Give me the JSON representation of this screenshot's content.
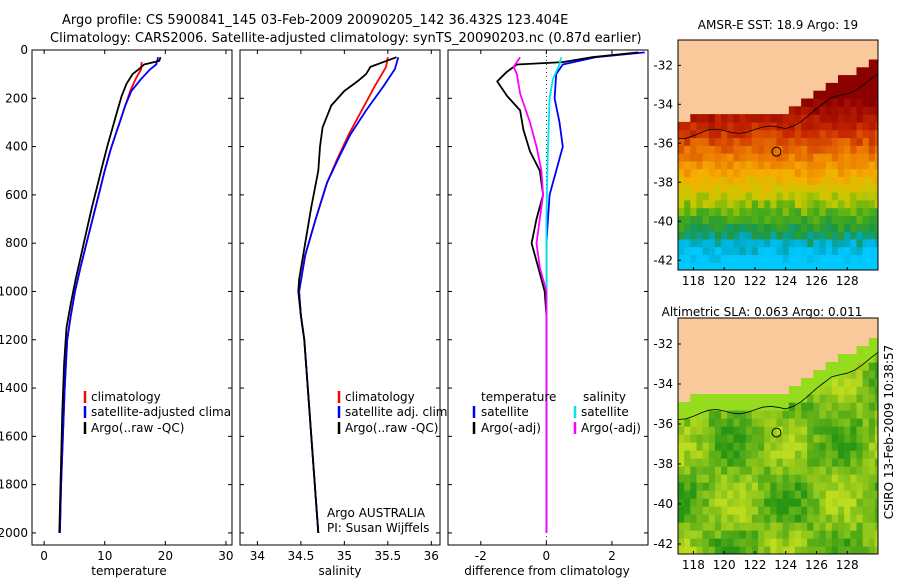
{
  "header": {
    "line1": "Argo profile: CS 5900841_145 03-Feb-2009 20090205_142 36.432S 123.404E",
    "line2": "Climatology: CARS2006. Satellite-adjusted climatology: synTS_20090203.nc (0.87d earlier)"
  },
  "side_label": "CSIRO 13-Feb-2009 10:38:57",
  "colors": {
    "climatology": "#ff0000",
    "satellite": "#0000ff",
    "argo": "#000000",
    "sal_satellite": "#00e5ee",
    "sal_argo": "#ff00ff",
    "land": "#f9c89b"
  },
  "chart_data": [
    {
      "type": "line",
      "name": "temperature-profile",
      "xlabel": "temperature",
      "ylabel": "depth",
      "xlim": [
        -2,
        31
      ],
      "ylim": [
        2050,
        0
      ],
      "xticks": [
        0,
        10,
        20,
        30
      ],
      "yticks": [
        0,
        200,
        400,
        600,
        800,
        1000,
        1200,
        1400,
        1600,
        1800,
        2000
      ],
      "series": [
        {
          "name": "climatology",
          "color": "#ff0000",
          "points": [
            [
              16.1,
              50
            ],
            [
              16.0,
              80
            ],
            [
              15.1,
              120
            ],
            [
              14.2,
              170
            ],
            [
              13.4,
              230
            ],
            [
              12.6,
              290
            ],
            [
              11.8,
              350
            ],
            [
              11.0,
              410
            ],
            [
              10.0,
              500
            ],
            [
              9.0,
              600
            ],
            [
              8.0,
              700
            ],
            [
              7.0,
              800
            ],
            [
              6.0,
              900
            ],
            [
              5.1,
              1000
            ],
            [
              4.4,
              1100
            ],
            [
              3.8,
              1200
            ],
            [
              3.4,
              1400
            ],
            [
              3.1,
              1600
            ],
            [
              2.8,
              1800
            ],
            [
              2.6,
              2000
            ]
          ]
        },
        {
          "name": "satellite-adjusted climatology",
          "color": "#0000ff",
          "points": [
            [
              18.8,
              30
            ],
            [
              18.5,
              60
            ],
            [
              17.5,
              80
            ],
            [
              16.0,
              120
            ],
            [
              14.4,
              170
            ],
            [
              13.4,
              230
            ],
            [
              12.6,
              290
            ],
            [
              11.8,
              350
            ],
            [
              11.0,
              410
            ],
            [
              10.0,
              500
            ],
            [
              9.0,
              600
            ],
            [
              8.0,
              700
            ],
            [
              7.0,
              800
            ],
            [
              6.0,
              900
            ],
            [
              5.1,
              1000
            ],
            [
              4.4,
              1100
            ],
            [
              3.8,
              1200
            ],
            [
              3.4,
              1400
            ],
            [
              3.1,
              1600
            ],
            [
              2.8,
              1800
            ],
            [
              2.6,
              2000
            ]
          ]
        },
        {
          "name": "Argo(..raw -QC)",
          "color": "#000000",
          "points": [
            [
              19.2,
              30
            ],
            [
              19.0,
              45
            ],
            [
              16.5,
              60
            ],
            [
              15.6,
              80
            ],
            [
              14.6,
              100
            ],
            [
              13.6,
              140
            ],
            [
              12.8,
              190
            ],
            [
              12.0,
              260
            ],
            [
              11.2,
              330
            ],
            [
              10.4,
              400
            ],
            [
              9.6,
              480
            ],
            [
              8.8,
              560
            ],
            [
              7.9,
              650
            ],
            [
              7.0,
              750
            ],
            [
              6.1,
              850
            ],
            [
              5.2,
              950
            ],
            [
              4.4,
              1050
            ],
            [
              3.7,
              1150
            ],
            [
              3.3,
              1300
            ],
            [
              3.0,
              1500
            ],
            [
              2.8,
              1700
            ],
            [
              2.6,
              1900
            ],
            [
              2.5,
              2000
            ]
          ]
        }
      ],
      "legend": {
        "position": "bottom-right",
        "entries": [
          "climatology",
          "satellite-adjusted climatology",
          "Argo(..raw -QC)"
        ]
      }
    },
    {
      "type": "line",
      "name": "salinity-profile",
      "xlabel": "salinity",
      "ylabel": "depth",
      "xlim": [
        33.8,
        36.1
      ],
      "ylim": [
        2050,
        0
      ],
      "xticks": [
        34,
        34.5,
        35,
        35.5,
        36
      ],
      "series": [
        {
          "name": "climatology",
          "color": "#ff0000",
          "points": [
            [
              35.5,
              30
            ],
            [
              35.48,
              70
            ],
            [
              35.35,
              150
            ],
            [
              35.2,
              250
            ],
            [
              35.05,
              350
            ],
            [
              34.92,
              450
            ],
            [
              34.8,
              550
            ],
            [
              34.67,
              700
            ],
            [
              34.55,
              850
            ],
            [
              34.48,
              1000
            ],
            [
              34.5,
              1100
            ],
            [
              34.54,
              1200
            ],
            [
              34.58,
              1400
            ],
            [
              34.62,
              1600
            ],
            [
              34.66,
              1800
            ],
            [
              34.7,
              2000
            ]
          ]
        },
        {
          "name": "satellite adj. clim.",
          "color": "#0000ff",
          "points": [
            [
              35.62,
              30
            ],
            [
              35.58,
              80
            ],
            [
              35.45,
              150
            ],
            [
              35.25,
              250
            ],
            [
              35.07,
              350
            ],
            [
              34.93,
              450
            ],
            [
              34.8,
              550
            ],
            [
              34.67,
              700
            ],
            [
              34.55,
              850
            ],
            [
              34.48,
              1000
            ],
            [
              34.5,
              1100
            ],
            [
              34.54,
              1200
            ],
            [
              34.58,
              1400
            ],
            [
              34.62,
              1600
            ],
            [
              34.66,
              1800
            ],
            [
              34.7,
              2000
            ]
          ]
        },
        {
          "name": "Argo(..raw -QC)",
          "color": "#000000",
          "points": [
            [
              35.6,
              30
            ],
            [
              35.3,
              70
            ],
            [
              35.25,
              100
            ],
            [
              35.15,
              130
            ],
            [
              35.0,
              170
            ],
            [
              34.85,
              230
            ],
            [
              34.75,
              320
            ],
            [
              34.72,
              400
            ],
            [
              34.7,
              500
            ],
            [
              34.62,
              650
            ],
            [
              34.55,
              800
            ],
            [
              34.48,
              950
            ],
            [
              34.47,
              1000
            ],
            [
              34.5,
              1100
            ],
            [
              34.54,
              1200
            ],
            [
              34.58,
              1400
            ],
            [
              34.62,
              1600
            ],
            [
              34.66,
              1800
            ],
            [
              34.7,
              2000
            ]
          ]
        }
      ],
      "legend": {
        "position": "bottom-right",
        "entries": [
          "climatology",
          "satellite adj. clim.",
          "Argo(..raw -QC)"
        ]
      },
      "annotation": [
        "Argo AUSTRALIA",
        "PI: Susan Wijffels"
      ]
    },
    {
      "type": "line",
      "name": "difference-profile",
      "xlabel": "difference from climatology",
      "ylabel": "depth",
      "xlim": [
        -3,
        3.1
      ],
      "ylim": [
        2050,
        0
      ],
      "xticks": [
        -2,
        0,
        2
      ],
      "series": [
        {
          "name": "temperature satellite",
          "color": "#0000ff",
          "points": [
            [
              3.0,
              10
            ],
            [
              1.5,
              30
            ],
            [
              0.5,
              60
            ],
            [
              0.3,
              100
            ],
            [
              0.25,
              200
            ],
            [
              0.4,
              300
            ],
            [
              0.5,
              400
            ],
            [
              0.3,
              500
            ],
            [
              0.1,
              600
            ],
            [
              0.0,
              800
            ],
            [
              0.0,
              2000
            ]
          ]
        },
        {
          "name": "temperature Argo(-adj)",
          "color": "#000000",
          "points": [
            [
              2.8,
              10
            ],
            [
              1.4,
              30
            ],
            [
              0.5,
              50
            ],
            [
              -0.9,
              60
            ],
            [
              -1.2,
              90
            ],
            [
              -1.5,
              130
            ],
            [
              -1.2,
              190
            ],
            [
              -0.8,
              250
            ],
            [
              -0.7,
              330
            ],
            [
              -0.5,
              420
            ],
            [
              -0.2,
              500
            ],
            [
              -0.1,
              600
            ],
            [
              -0.3,
              700
            ],
            [
              -0.45,
              800
            ],
            [
              -0.25,
              900
            ],
            [
              -0.05,
              1000
            ],
            [
              0.0,
              1100
            ],
            [
              0.0,
              2000
            ]
          ]
        },
        {
          "name": "salinity satellite",
          "color": "#00e5ee",
          "points": [
            [
              0.45,
              30
            ],
            [
              0.4,
              60
            ],
            [
              0.2,
              120
            ],
            [
              0.1,
              200
            ],
            [
              0.05,
              400
            ],
            [
              0.0,
              700
            ],
            [
              0.0,
              2000
            ]
          ]
        },
        {
          "name": "salinity Argo(-adj)",
          "color": "#ff00ff",
          "points": [
            [
              -0.8,
              30
            ],
            [
              -1.0,
              70
            ],
            [
              -0.9,
              100
            ],
            [
              -0.8,
              180
            ],
            [
              -0.5,
              300
            ],
            [
              -0.3,
              400
            ],
            [
              -0.15,
              500
            ],
            [
              -0.1,
              600
            ],
            [
              -0.2,
              700
            ],
            [
              -0.3,
              800
            ],
            [
              -0.2,
              900
            ],
            [
              0.0,
              1000
            ],
            [
              0.0,
              2000
            ]
          ]
        }
      ],
      "legend": {
        "position": "bottom",
        "headers": [
          "temperature",
          "salinity"
        ],
        "entries": [
          "satellite",
          "Argo(-adj)",
          "satellite",
          "Argo(-adj)"
        ]
      }
    },
    {
      "type": "heatmap",
      "name": "sst-map",
      "title": "AMSR-E SST: 18.9 Argo: 19",
      "xlim": [
        117,
        130
      ],
      "ylim": [
        -42.5,
        -30.7
      ],
      "xticks": [
        118,
        120,
        122,
        124,
        126,
        128
      ],
      "yticks": [
        -32,
        -34,
        -36,
        -38,
        -40,
        -42
      ],
      "argo_location": [
        123.4,
        -36.43
      ]
    },
    {
      "type": "heatmap",
      "name": "sla-map",
      "title": "Altimetric SLA: 0.063 Argo: 0.011",
      "xlim": [
        117,
        130
      ],
      "ylim": [
        -42.5,
        -30.7
      ],
      "xticks": [
        118,
        120,
        122,
        124,
        126,
        128
      ],
      "yticks": [
        -32,
        -34,
        -36,
        -38,
        -40,
        -42
      ],
      "argo_location": [
        123.4,
        -36.43
      ]
    }
  ],
  "legends": {
    "temp": [
      "climatology",
      "satellite-adjusted climatology",
      "Argo(..raw -QC)"
    ],
    "sal": [
      "climatology",
      "satellite adj. clim.",
      "Argo(..raw -QC)"
    ],
    "diff_headers": [
      "temperature",
      "salinity"
    ],
    "diff": [
      "satellite",
      "Argo(-adj)",
      "satellite",
      "Argo(-adj)"
    ]
  },
  "annotation": {
    "line1": "Argo AUSTRALIA",
    "line2": "PI: Susan Wijffels"
  },
  "axis_labels": {
    "temp": "temperature",
    "sal": "salinity",
    "diff": "difference from climatology"
  },
  "map_titles": {
    "sst": "AMSR-E SST: 18.9 Argo: 19",
    "sla": "Altimetric SLA: 0.063 Argo: 0.011"
  }
}
